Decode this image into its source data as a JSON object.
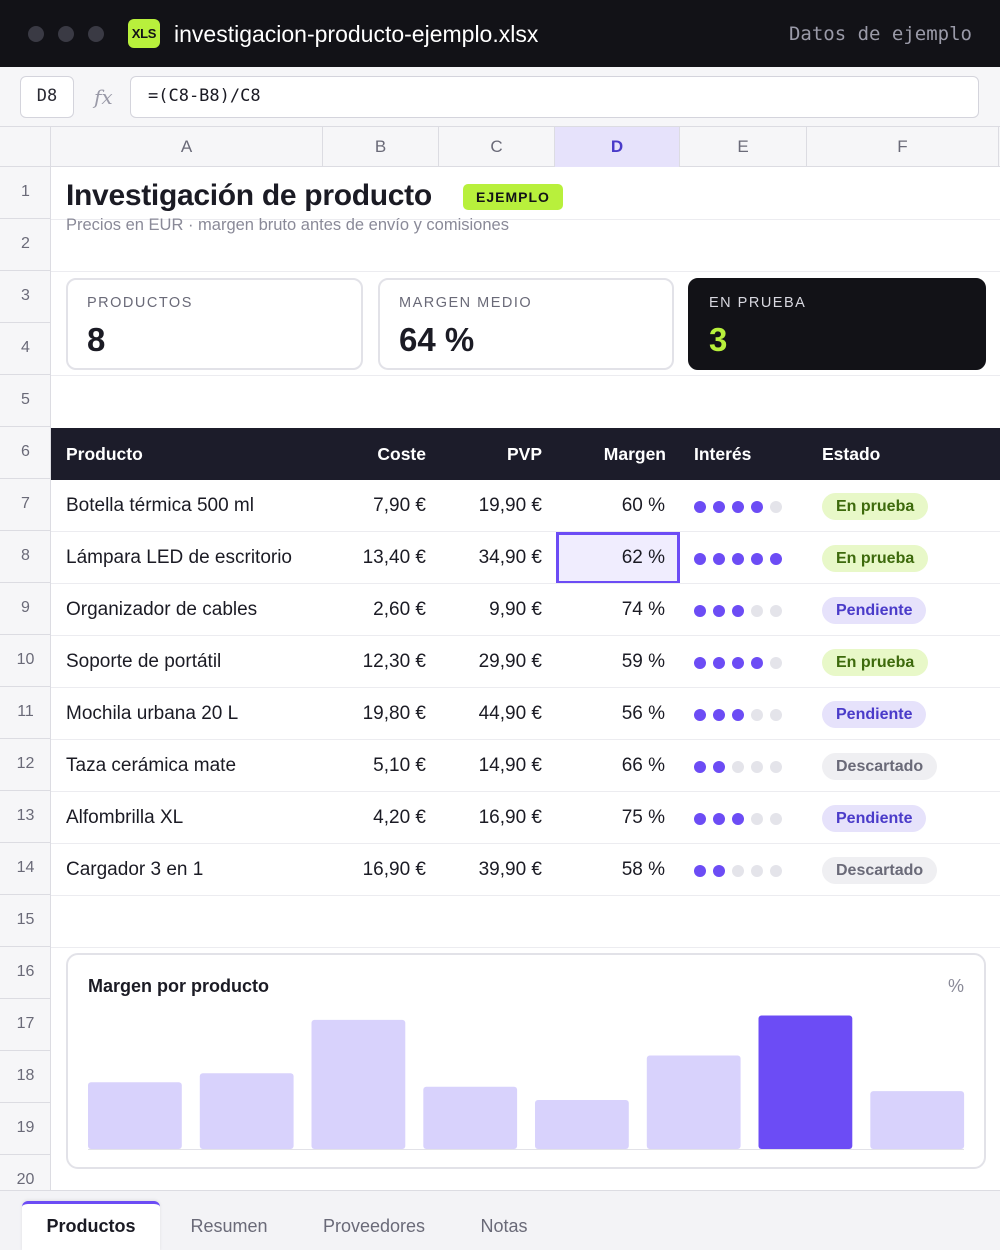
{
  "window": {
    "file_icon": "XLS",
    "file_name": "investigacion-producto-ejemplo.xlsx",
    "sample_label": "Datos de ejemplo"
  },
  "formula_bar": {
    "cell_ref": "D8",
    "fx_label": "fx",
    "formula": "=(C8-B8)/C8"
  },
  "columns": [
    "A",
    "B",
    "C",
    "D",
    "E",
    "F"
  ],
  "active_column": "D",
  "rows": [
    "1",
    "2",
    "3",
    "4",
    "5",
    "6",
    "7",
    "8",
    "9",
    "10",
    "11",
    "12",
    "13",
    "14",
    "15",
    "16",
    "17",
    "18",
    "19",
    "20"
  ],
  "sheet": {
    "title": "Investigación de producto",
    "chip": "EJEMPLO",
    "subtitle": "Precios en EUR · margen bruto antes de envío y comisiones"
  },
  "kpis": [
    {
      "label": "PRODUCTOS",
      "value": "8"
    },
    {
      "label": "MARGEN MEDIO",
      "value": "64 %"
    },
    {
      "label": "EN PRUEBA",
      "value": "3"
    }
  ],
  "table": {
    "headers": {
      "product": "Producto",
      "cost": "Coste",
      "price": "PVP",
      "margin": "Margen",
      "interest": "Interés",
      "status": "Estado"
    },
    "rows": [
      {
        "product": "Botella térmica 500 ml",
        "cost": "7,90 €",
        "price": "19,90 €",
        "margin": "60 %",
        "interest": 4,
        "status": "En prueba",
        "status_kind": "testing"
      },
      {
        "product": "Lámpara LED de escritorio",
        "cost": "13,40 €",
        "price": "34,90 €",
        "margin": "62 %",
        "interest": 5,
        "status": "En prueba",
        "status_kind": "testing"
      },
      {
        "product": "Organizador de cables",
        "cost": "2,60 €",
        "price": "9,90 €",
        "margin": "74 %",
        "interest": 3,
        "status": "Pendiente",
        "status_kind": "pending"
      },
      {
        "product": "Soporte de portátil",
        "cost": "12,30 €",
        "price": "29,90 €",
        "margin": "59 %",
        "interest": 4,
        "status": "En prueba",
        "status_kind": "testing"
      },
      {
        "product": "Mochila urbana 20 L",
        "cost": "19,80 €",
        "price": "44,90 €",
        "margin": "56 %",
        "interest": 3,
        "status": "Pendiente",
        "status_kind": "pending"
      },
      {
        "product": "Taza cerámica mate",
        "cost": "5,10 €",
        "price": "14,90 €",
        "margin": "66 %",
        "interest": 2,
        "status": "Descartado",
        "status_kind": "discarded"
      },
      {
        "product": "Alfombrilla XL",
        "cost": "4,20 €",
        "price": "16,90 €",
        "margin": "75 %",
        "interest": 3,
        "status": "Pendiente",
        "status_kind": "pending"
      },
      {
        "product": "Cargador 3 en 1",
        "cost": "16,90 €",
        "price": "39,90 €",
        "margin": "58 %",
        "interest": 2,
        "status": "Descartado",
        "status_kind": "discarded"
      }
    ]
  },
  "chart_data": {
    "type": "bar",
    "title": "Margen por producto",
    "unit": "%",
    "categories": [
      "Botella térmica 500 ml",
      "Lámpara LED de escritorio",
      "Organizador de cables",
      "Soporte de portátil",
      "Mochila urbana 20 L",
      "Taza cerámica mate",
      "Alfombrilla XL",
      "Cargador 3 en 1"
    ],
    "values": [
      60,
      62,
      74,
      59,
      56,
      66,
      75,
      58
    ],
    "ylim": [
      45,
      76
    ],
    "highlight_index": 6,
    "colors": {
      "bar": "#d8d2fc",
      "highlight": "#6c4cf5"
    }
  },
  "tabs": [
    {
      "label": "Productos",
      "active": true
    },
    {
      "label": "Resumen",
      "active": false
    },
    {
      "label": "Proveedores",
      "active": false
    },
    {
      "label": "Notas",
      "active": false
    }
  ],
  "colors": {
    "accent": "#6c4cf5",
    "lime": "#b8f03c",
    "dark": "#121217"
  },
  "icons": {
    "formula": "fx-icon",
    "file": "spreadsheet-file-icon"
  }
}
